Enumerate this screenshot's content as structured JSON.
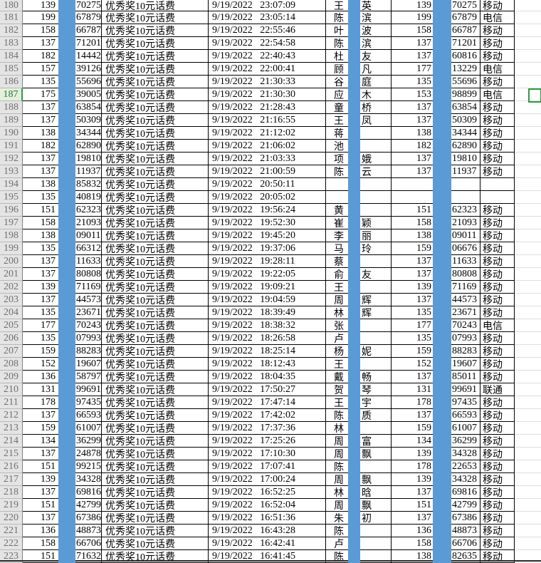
{
  "app": {
    "kind": "spreadsheet-grid",
    "visible_row_range": "180-223"
  },
  "selection": {
    "selected_row": "187"
  },
  "colors": {
    "mask_blue": "#5b9bd5",
    "selection_green": "#2e9b43",
    "row_header_bg": "#e4e4e4",
    "row_header_selected_bg": "#e3f0dc",
    "row_header_selected_text": "#1f7a38",
    "grid_border": "#000000"
  },
  "rows": [
    {
      "num": "180",
      "p1a": "139",
      "p1b": "70275",
      "prize": "优秀奖10元话费",
      "dt": "9/19/2022 23:07:09",
      "n1": "王",
      "n2": "英",
      "p2a": "139",
      "p2b": "70275",
      "car": "移动"
    },
    {
      "num": "181",
      "p1a": "199",
      "p1b": "67879",
      "prize": "优秀奖10元话费",
      "dt": "9/19/2022 23:05:14",
      "n1": "陈",
      "n2": "滨",
      "p2a": "199",
      "p2b": "67879",
      "car": "电信"
    },
    {
      "num": "182",
      "p1a": "158",
      "p1b": "66787",
      "prize": "优秀奖10元话费",
      "dt": "9/19/2022 22:55:46",
      "n1": "叶",
      "n2": "波",
      "p2a": "158",
      "p2b": "66787",
      "car": "移动"
    },
    {
      "num": "183",
      "p1a": "137",
      "p1b": "71201",
      "prize": "优秀奖10元话费",
      "dt": "9/19/2022 22:54:58",
      "n1": "陈",
      "n2": "滨",
      "p2a": "137",
      "p2b": "71201",
      "car": "移动"
    },
    {
      "num": "184",
      "p1a": "182",
      "p1b": "14442",
      "prize": "优秀奖10元话费",
      "dt": "9/19/2022 22:40:43",
      "n1": "杜",
      "n2": "友",
      "p2a": "137",
      "p2b": "60816",
      "car": "移动"
    },
    {
      "num": "185",
      "p1a": "157",
      "p1b": "39126",
      "prize": "优秀奖10元话费",
      "dt": "9/19/2022 22:00:41",
      "n1": "顾",
      "n2": "凡",
      "p2a": "177",
      "p2b": "13229",
      "car": "电信"
    },
    {
      "num": "186",
      "p1a": "135",
      "p1b": "55696",
      "prize": "优秀奖10元话费",
      "dt": "9/19/2022 21:30:33",
      "n1": "谷",
      "n2": "庭",
      "p2a": "135",
      "p2b": "55696",
      "car": "移动"
    },
    {
      "num": "187",
      "p1a": "175",
      "p1b": "39005",
      "prize": "优秀奖10元话费",
      "dt": "9/19/2022 21:30:30",
      "n1": "应",
      "n2": "木",
      "p2a": "153",
      "p2b": "98899",
      "car": "电信"
    },
    {
      "num": "188",
      "p1a": "137",
      "p1b": "63854",
      "prize": "优秀奖10元话费",
      "dt": "9/19/2022 21:28:43",
      "n1": "童",
      "n2": "桥",
      "p2a": "137",
      "p2b": "63854",
      "car": "移动"
    },
    {
      "num": "189",
      "p1a": "137",
      "p1b": "50309",
      "prize": "优秀奖10元话费",
      "dt": "9/19/2022 21:16:55",
      "n1": "王",
      "n2": "凤",
      "p2a": "137",
      "p2b": "50309",
      "car": "移动"
    },
    {
      "num": "190",
      "p1a": "138",
      "p1b": "34344",
      "prize": "优秀奖10元话费",
      "dt": "9/19/2022 21:12:02",
      "n1": "蒋",
      "n2": "",
      "p2a": "138",
      "p2b": "34344",
      "car": "移动"
    },
    {
      "num": "191",
      "p1a": "182",
      "p1b": "62890",
      "prize": "优秀奖10元话费",
      "dt": "9/19/2022 21:06:02",
      "n1": "池",
      "n2": "",
      "p2a": "182",
      "p2b": "62890",
      "car": "移动"
    },
    {
      "num": "192",
      "p1a": "137",
      "p1b": "19810",
      "prize": "优秀奖10元话费",
      "dt": "9/19/2022 21:03:33",
      "n1": "项",
      "n2": "娥",
      "p2a": "137",
      "p2b": "19810",
      "car": "移动"
    },
    {
      "num": "193",
      "p1a": "137",
      "p1b": "11937",
      "prize": "优秀奖10元话费",
      "dt": "9/19/2022 21:00:59",
      "n1": "陈",
      "n2": "云",
      "p2a": "137",
      "p2b": "11937",
      "car": "移动"
    },
    {
      "num": "194",
      "p1a": "138",
      "p1b": "85832",
      "prize": "优秀奖10元话费",
      "dt": "9/19/2022 20:50:11",
      "n1": "",
      "n2": "",
      "p2a": "",
      "p2b": "",
      "car": ""
    },
    {
      "num": "195",
      "p1a": "135",
      "p1b": "40819",
      "prize": "优秀奖10元话费",
      "dt": "9/19/2022 20:05:02",
      "n1": "",
      "n2": "",
      "p2a": "",
      "p2b": "",
      "car": ""
    },
    {
      "num": "196",
      "p1a": "151",
      "p1b": "62323",
      "prize": "优秀奖10元话费",
      "dt": "9/19/2022 19:56:24",
      "n1": "黄",
      "n2": "",
      "p2a": "151",
      "p2b": "62323",
      "car": "移动"
    },
    {
      "num": "197",
      "p1a": "158",
      "p1b": "21093",
      "prize": "优秀奖10元话费",
      "dt": "9/19/2022 19:52:30",
      "n1": "崔",
      "n2": "颖",
      "p2a": "158",
      "p2b": "21093",
      "car": "移动"
    },
    {
      "num": "198",
      "p1a": "138",
      "p1b": "09011",
      "prize": "优秀奖10元话费",
      "dt": "9/19/2022 19:45:20",
      "n1": "李",
      "n2": "丽",
      "p2a": "138",
      "p2b": "09011",
      "car": "移动"
    },
    {
      "num": "199",
      "p1a": "135",
      "p1b": "66312",
      "prize": "优秀奖10元话费",
      "dt": "9/19/2022 19:37:06",
      "n1": "马",
      "n2": "玲",
      "p2a": "159",
      "p2b": "06676",
      "car": "移动"
    },
    {
      "num": "200",
      "p1a": "137",
      "p1b": "11633",
      "prize": "优秀奖10元话费",
      "dt": "9/19/2022 19:28:11",
      "n1": "蔡",
      "n2": "",
      "p2a": "137",
      "p2b": "11633",
      "car": "移动"
    },
    {
      "num": "201",
      "p1a": "137",
      "p1b": "80808",
      "prize": "优秀奖10元话费",
      "dt": "9/19/2022 19:22:05",
      "n1": "俞",
      "n2": "友",
      "p2a": "137",
      "p2b": "80808",
      "car": "移动"
    },
    {
      "num": "202",
      "p1a": "139",
      "p1b": "71169",
      "prize": "优秀奖10元话费",
      "dt": "9/19/2022 19:09:21",
      "n1": "王",
      "n2": "",
      "p2a": "139",
      "p2b": "71169",
      "car": "移动"
    },
    {
      "num": "203",
      "p1a": "137",
      "p1b": "44573",
      "prize": "优秀奖10元话费",
      "dt": "9/19/2022 19:04:59",
      "n1": "周",
      "n2": "辉",
      "p2a": "137",
      "p2b": "44573",
      "car": "移动"
    },
    {
      "num": "204",
      "p1a": "135",
      "p1b": "23671",
      "prize": "优秀奖10元话费",
      "dt": "9/19/2022 18:39:49",
      "n1": "林",
      "n2": "辉",
      "p2a": "135",
      "p2b": "23671",
      "car": "移动"
    },
    {
      "num": "205",
      "p1a": "177",
      "p1b": "70243",
      "prize": "优秀奖10元话费",
      "dt": "9/19/2022 18:38:32",
      "n1": "张",
      "n2": "",
      "p2a": "177",
      "p2b": "70243",
      "car": "电信"
    },
    {
      "num": "206",
      "p1a": "135",
      "p1b": "07993",
      "prize": "优秀奖10元话费",
      "dt": "9/19/2022 18:26:58",
      "n1": "卢",
      "n2": "",
      "p2a": "135",
      "p2b": "07993",
      "car": "移动"
    },
    {
      "num": "207",
      "p1a": "159",
      "p1b": "88283",
      "prize": "优秀奖10元话费",
      "dt": "9/19/2022 18:25:14",
      "n1": "杨",
      "n2": "妮",
      "p2a": "159",
      "p2b": "88283",
      "car": "移动"
    },
    {
      "num": "208",
      "p1a": "152",
      "p1b": "19607",
      "prize": "优秀奖10元话费",
      "dt": "9/19/2022 18:12:43",
      "n1": "王",
      "n2": "",
      "p2a": "152",
      "p2b": "19607",
      "car": "移动"
    },
    {
      "num": "209",
      "p1a": "136",
      "p1b": "58797",
      "prize": "优秀奖10元话费",
      "dt": "9/19/2022 18:04:35",
      "n1": "戴",
      "n2": "畅",
      "p2a": "137",
      "p2b": "85011",
      "car": "移动"
    },
    {
      "num": "210",
      "p1a": "131",
      "p1b": "99691",
      "prize": "优秀奖10元话费",
      "dt": "9/19/2022 17:50:27",
      "n1": "贺",
      "n2": "琴",
      "p2a": "131",
      "p2b": "99691",
      "car": "联通"
    },
    {
      "num": "211",
      "p1a": "178",
      "p1b": "97435",
      "prize": "优秀奖10元话费",
      "dt": "9/19/2022 17:47:14",
      "n1": "王",
      "n2": "宇",
      "p2a": "178",
      "p2b": "97435",
      "car": "移动"
    },
    {
      "num": "212",
      "p1a": "137",
      "p1b": "66593",
      "prize": "优秀奖10元话费",
      "dt": "9/19/2022 17:42:02",
      "n1": "陈",
      "n2": "质",
      "p2a": "137",
      "p2b": "66593",
      "car": "移动"
    },
    {
      "num": "213",
      "p1a": "159",
      "p1b": "61007",
      "prize": "优秀奖10元话费",
      "dt": "9/19/2022 17:37:36",
      "n1": "林",
      "n2": "",
      "p2a": "159",
      "p2b": "61007",
      "car": "移动"
    },
    {
      "num": "214",
      "p1a": "134",
      "p1b": "36299",
      "prize": "优秀奖10元话费",
      "dt": "9/19/2022 17:25:26",
      "n1": "周",
      "n2": "富",
      "p2a": "134",
      "p2b": "36299",
      "car": "移动"
    },
    {
      "num": "215",
      "p1a": "137",
      "p1b": "24878",
      "prize": "优秀奖10元话费",
      "dt": "9/19/2022 17:10:30",
      "n1": "周",
      "n2": "飘",
      "p2a": "139",
      "p2b": "34328",
      "car": "移动"
    },
    {
      "num": "216",
      "p1a": "151",
      "p1b": "99215",
      "prize": "优秀奖10元话费",
      "dt": "9/19/2022 17:07:41",
      "n1": "陈",
      "n2": "",
      "p2a": "178",
      "p2b": "22653",
      "car": "移动"
    },
    {
      "num": "217",
      "p1a": "139",
      "p1b": "34328",
      "prize": "优秀奖10元话费",
      "dt": "9/19/2022 17:00:24",
      "n1": "周",
      "n2": "飘",
      "p2a": "139",
      "p2b": "34328",
      "car": "移动"
    },
    {
      "num": "218",
      "p1a": "137",
      "p1b": "69816",
      "prize": "优秀奖10元话费",
      "dt": "9/19/2022 16:52:25",
      "n1": "林",
      "n2": "晗",
      "p2a": "137",
      "p2b": "69816",
      "car": "移动"
    },
    {
      "num": "219",
      "p1a": "151",
      "p1b": "42799",
      "prize": "优秀奖10元话费",
      "dt": "9/19/2022 16:52:04",
      "n1": "周",
      "n2": "飘",
      "p2a": "151",
      "p2b": "42799",
      "car": "移动"
    },
    {
      "num": "220",
      "p1a": "137",
      "p1b": "67386",
      "prize": "优秀奖10元话费",
      "dt": "9/19/2022 16:51:36",
      "n1": "朱",
      "n2": "初",
      "p2a": "137",
      "p2b": "67386",
      "car": "移动"
    },
    {
      "num": "221",
      "p1a": "136",
      "p1b": "48873",
      "prize": "优秀奖10元话费",
      "dt": "9/19/2022 16:43:28",
      "n1": "陈",
      "n2": "",
      "p2a": "136",
      "p2b": "48873",
      "car": "移动"
    },
    {
      "num": "222",
      "p1a": "158",
      "p1b": "66706",
      "prize": "优秀奖10元话费",
      "dt": "9/19/2022 16:42:41",
      "n1": "卢",
      "n2": "",
      "p2a": "158",
      "p2b": "66706",
      "car": "移动"
    },
    {
      "num": "223",
      "p1a": "151",
      "p1b": "71632",
      "prize": "优秀奖10元话费",
      "dt": "9/19/2022 16:41:45",
      "n1": "陈",
      "n2": "",
      "p2a": "138",
      "p2b": "82635",
      "car": "移动"
    }
  ]
}
